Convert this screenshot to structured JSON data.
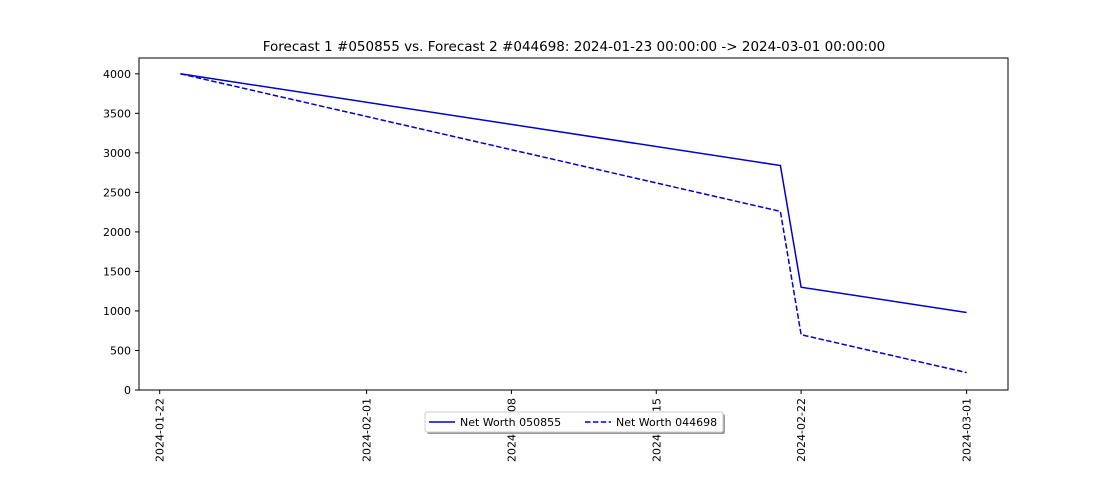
{
  "chart_data": {
    "type": "line",
    "title": "Forecast 1 #050855 vs. Forecast 2 #044698: 2024-01-23 00:00:00 -> 2024-03-01 00:00:00",
    "xlabel": "",
    "ylabel": "",
    "x_axis_type": "date",
    "xlim": [
      "2024-01-21",
      "2024-03-03"
    ],
    "ylim": [
      0,
      4200
    ],
    "x_ticks": [
      "2024-01-22",
      "2024-02-01",
      "2024-02-08",
      "2024-02-15",
      "2024-02-22",
      "2024-03-01"
    ],
    "y_ticks": [
      0,
      500,
      1000,
      1500,
      2000,
      2500,
      3000,
      3500,
      4000
    ],
    "grid": false,
    "legend_position": "bottom-center",
    "series": [
      {
        "name": "Net Worth 050855",
        "color": "#0000cc",
        "line_style": "solid",
        "points": [
          {
            "x": "2024-01-23",
            "y": 4000
          },
          {
            "x": "2024-02-21",
            "y": 2840
          },
          {
            "x": "2024-02-22",
            "y": 1300
          },
          {
            "x": "2024-03-01",
            "y": 980
          }
        ]
      },
      {
        "name": "Net Worth 044698",
        "color": "#0000cc",
        "line_style": "dashed",
        "points": [
          {
            "x": "2024-01-23",
            "y": 4000
          },
          {
            "x": "2024-02-21",
            "y": 2260
          },
          {
            "x": "2024-02-22",
            "y": 700
          },
          {
            "x": "2024-03-01",
            "y": 220
          }
        ]
      }
    ]
  }
}
